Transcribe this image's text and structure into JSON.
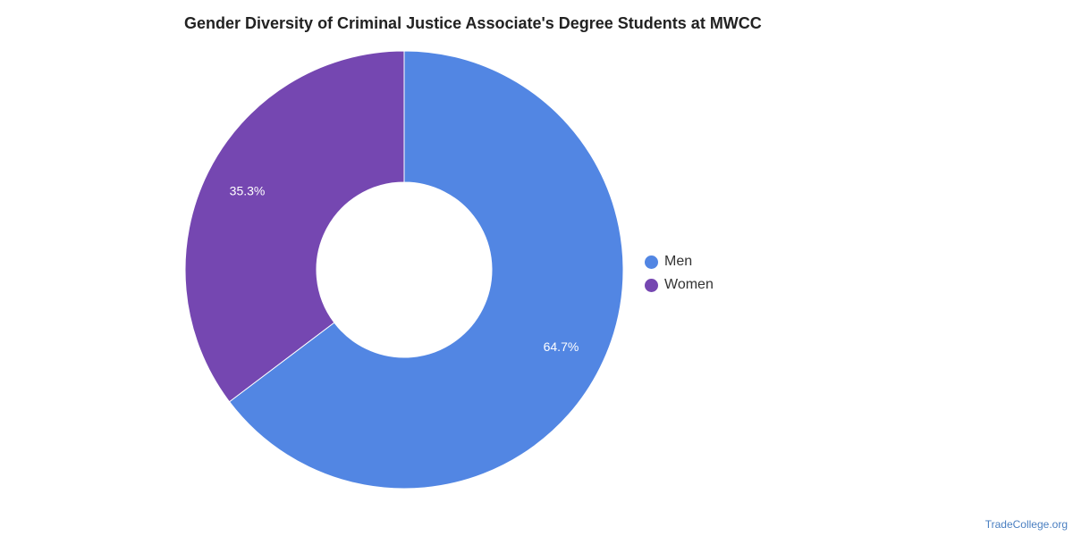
{
  "title": "Gender Diversity of Criminal Justice Associate's Degree Students at MWCC",
  "source": "TradeCollege.org",
  "chart_data": {
    "type": "pie",
    "donut": true,
    "title": "Gender Diversity of Criminal Justice Associate's Degree Students at MWCC",
    "categories": [
      "Men",
      "Women"
    ],
    "values": [
      64.7,
      35.3
    ],
    "labels": [
      "64.7%",
      "35.3%"
    ],
    "colors": [
      "#5286e3",
      "#7547b1"
    ],
    "legend_placement": "right"
  }
}
